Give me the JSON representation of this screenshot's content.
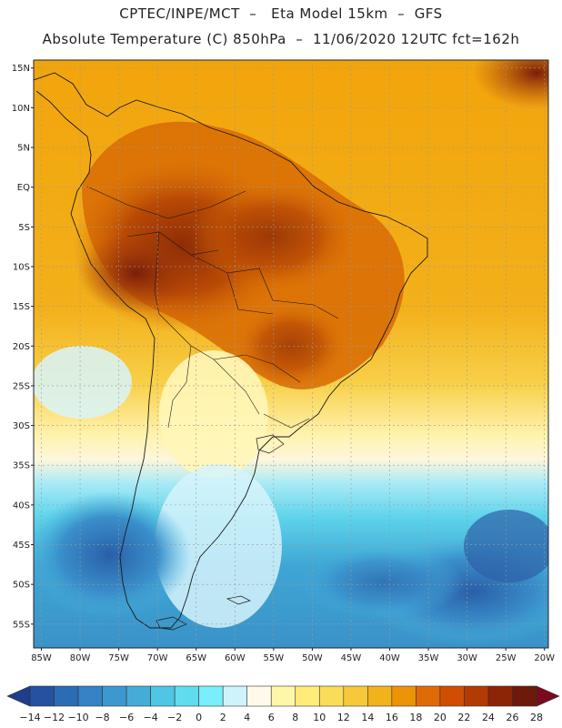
{
  "header": {
    "line1": "CPTEC/INPE/MCT  –   Eta Model 15km  –  GFS",
    "line2": "Absolute Temperature (C) 850hPa  –  11/06/2020 12UTC fct=162h"
  },
  "map": {
    "lat_labels": [
      "15N",
      "10N",
      "5N",
      "EQ",
      "5S",
      "10S",
      "15S",
      "20S",
      "25S",
      "30S",
      "35S",
      "40S",
      "45S",
      "50S",
      "55S"
    ],
    "lon_labels": [
      "85W",
      "80W",
      "75W",
      "70W",
      "65W",
      "60W",
      "55W",
      "50W",
      "45W",
      "40W",
      "35W",
      "30W",
      "25W",
      "20W"
    ],
    "extent": {
      "lon_min": -86,
      "lon_max": -19.5,
      "lat_min": -58,
      "lat_max": 16
    }
  },
  "colorbar": {
    "ticks": [
      "-14",
      "-12",
      "-10",
      "-8",
      "-6",
      "-4",
      "-2",
      "0",
      "2",
      "4",
      "6",
      "8",
      "10",
      "12",
      "14",
      "16",
      "18",
      "20",
      "22",
      "24",
      "26",
      "28"
    ],
    "colors": [
      "#1f3d8a",
      "#2452a0",
      "#2c6cb4",
      "#3582c4",
      "#3d98cf",
      "#45acd8",
      "#4ec6e4",
      "#60dcef",
      "#7aeefa",
      "#cff3fb",
      "#fffbe8",
      "#fff7a8",
      "#ffec7a",
      "#fbdc5a",
      "#f7c938",
      "#f2b21c",
      "#ec9408",
      "#e06a06",
      "#cf4e04",
      "#b23a04",
      "#8c2406",
      "#6e1a0a",
      "#7a0a1e"
    ],
    "unit": "C"
  }
}
